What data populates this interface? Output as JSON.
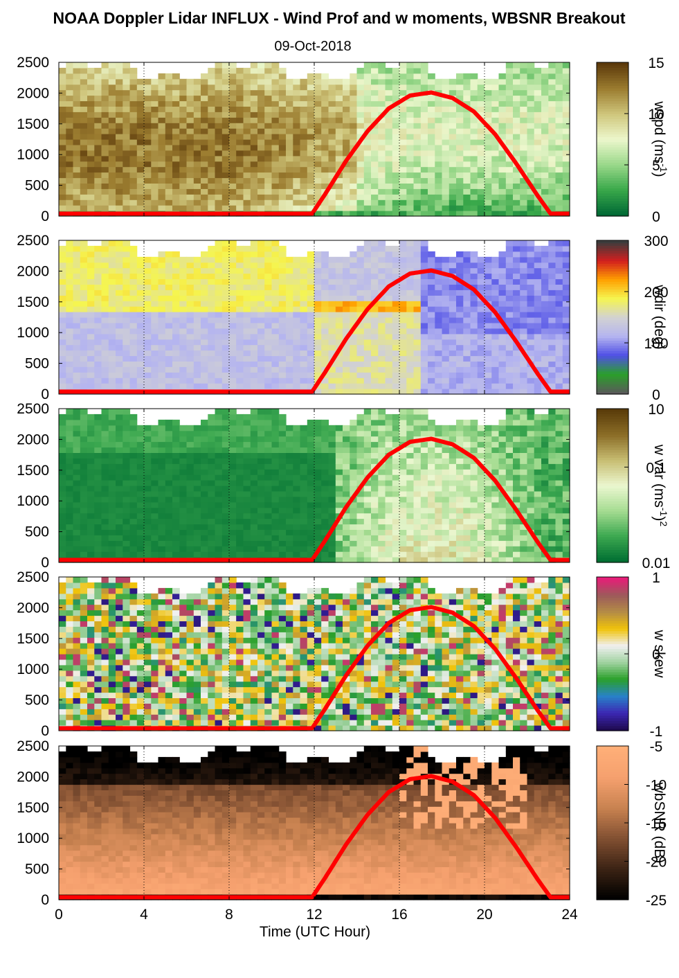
{
  "figure": {
    "title": "NOAA Doppler Lidar INFLUX - Wind Prof and w moments, WBSNR Breakout",
    "date": "09-Oct-2018",
    "xlabel": "Time (UTC Hour)"
  },
  "chart_data": {
    "type": "heatmap",
    "x_ticks": [
      0,
      4,
      8,
      12,
      16,
      20,
      24
    ],
    "xlim": [
      0,
      24
    ],
    "y_ticks": [
      0,
      500,
      1000,
      1500,
      2000,
      2500
    ],
    "ylim": [
      0,
      2500
    ],
    "grid_x_dotted": [
      4,
      8,
      12,
      16,
      20,
      24
    ],
    "sun_elevation_curve": {
      "color": "#ff0000",
      "t": [
        0,
        11.9,
        12.5,
        13.5,
        14.5,
        15.5,
        16.5,
        17.5,
        18.5,
        19.5,
        20.5,
        21.5,
        22.5,
        23.1,
        24
      ],
      "alt": [
        40,
        40,
        350,
        900,
        1380,
        1750,
        1960,
        2010,
        1920,
        1700,
        1330,
        850,
        330,
        40,
        40
      ]
    },
    "panels": [
      {
        "id": "wspd",
        "label": "wspd (ms",
        "label_exp": "-1",
        "label_end": ")",
        "cb_ticks": [
          "0",
          "5",
          "10",
          "15"
        ],
        "colors": [
          "#006835",
          "#39a84a",
          "#9ad88a",
          "#ecf7cc",
          "#cfc67c",
          "#9c7d30",
          "#5c3a0b"
        ]
      },
      {
        "id": "wdir",
        "label": "wdir (deg)",
        "cb_ticks": [
          "0",
          "100",
          "200",
          "300"
        ],
        "colors": [
          "#5a5a5a",
          "#2aa02a",
          "#5050e6",
          "#b4b4f0",
          "#d2d2d2",
          "#f5f550",
          "#ffa000",
          "#d21e1e",
          "#3c3c3c"
        ]
      },
      {
        "id": "wvar",
        "label": "w var (ms",
        "label_exp": "-1",
        "label_end": ")",
        "label_exp2": "2",
        "cb_ticks": [
          "0.01",
          "0.1",
          "10"
        ],
        "colors": [
          "#006e32",
          "#3ca850",
          "#a5dc91",
          "#ebf7d0",
          "#c8be73",
          "#8c6e28",
          "#5a3c0a"
        ]
      },
      {
        "id": "wskew",
        "label": "w skew",
        "cb_ticks": [
          "-1",
          "0",
          "1"
        ],
        "colors": [
          "#1e0a50",
          "#3c28b4",
          "#2882c8",
          "#2aa02a",
          "#a0d2a0",
          "#f0f0f0",
          "#f0c30a",
          "#b48c46",
          "#9c5a5a",
          "#e61e78"
        ]
      },
      {
        "id": "wbsnr",
        "label": "wbSNR (dB)",
        "cb_ticks": [
          "-25",
          "-20",
          "-15",
          "-10",
          "-5"
        ],
        "colors": [
          "#000000",
          "#3c2314",
          "#825032",
          "#c88250",
          "#f5a06e",
          "#ffaf78"
        ]
      }
    ]
  }
}
